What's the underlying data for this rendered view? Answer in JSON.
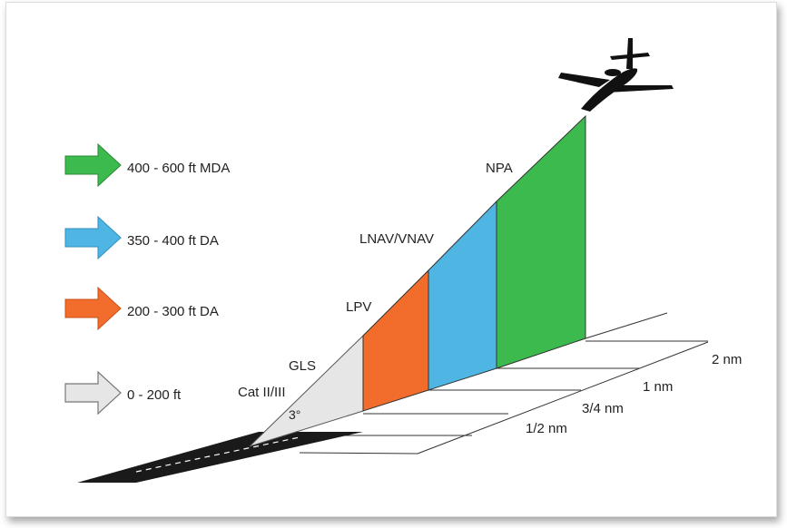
{
  "legend": [
    {
      "label": "400 - 600 ft MDA",
      "color": "#3dba4e"
    },
    {
      "label": "350 - 400 ft DA",
      "color": "#4fb6e3"
    },
    {
      "label": "200 - 300 ft DA",
      "color": "#f26c2b"
    },
    {
      "label": "0 - 200 ft",
      "color": "#e6e6e6"
    }
  ],
  "approaches": {
    "npa": "NPA",
    "lnav_vnav": "LNAV/VNAV",
    "lpv": "LPV",
    "gls": "GLS",
    "cat": "Cat II/III",
    "angle": "3°"
  },
  "distances": {
    "d1": "1/2 nm",
    "d2": "3/4 nm",
    "d3": "1 nm",
    "d4": "2 nm"
  },
  "colors": {
    "green": "#3dba4e",
    "blue": "#4fb6e3",
    "orange": "#f26c2b",
    "gray": "#e6e6e6",
    "runway": "#1a1a1a",
    "aircraft": "#111111"
  }
}
